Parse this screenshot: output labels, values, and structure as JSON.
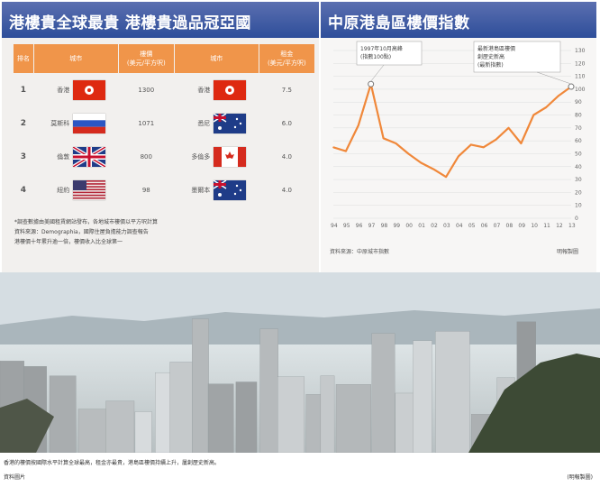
{
  "left_panel": {
    "title": "港樓貴全球最貴 港樓貴過品冠亞國",
    "table": {
      "headers": [
        "排名",
        "城市",
        "樓價\n(美元/平方呎)",
        "城市",
        "租金\n(美元/平方呎)"
      ],
      "rows": [
        {
          "rank": "1",
          "city1": "香港",
          "flag1": "hong-kong",
          "price": "1300",
          "city2": "香港",
          "flag2": "hong-kong",
          "rent": "7.5"
        },
        {
          "rank": "2",
          "city1": "莫斯科",
          "flag1": "russia",
          "price": "1071",
          "city2": "悉尼",
          "flag2": "australia",
          "rent": "6.0"
        },
        {
          "rank": "3",
          "city1": "倫敦",
          "flag1": "uk",
          "price": "800",
          "city2": "多倫多",
          "flag2": "canada",
          "rent": "4.0"
        },
        {
          "rank": "4",
          "city1": "紐約",
          "flag1": "usa",
          "price": "98",
          "city2": "墨爾本",
          "flag2": "australia",
          "rent": "4.0"
        }
      ]
    },
    "notes": [
      "*調查數據由美國租賃網站發布，各地城市樓價以平方呎計算",
      "資料來源：Demographia，國際住屋負擔能力調查報告",
      "港樓價十年累升逾一倍，樓價收入比全球第一"
    ]
  },
  "right_panel": {
    "title": "中原港島區樓價指數",
    "annotation_left": "1997年10月高峰\n(指數100點)",
    "annotation_right": "最新港島區樓價\n創歷史新高\n(最新指數)",
    "source": "資料來源：中原城市指數",
    "credit": "明報製圖"
  },
  "chart_data": {
    "type": "line",
    "title": "中原港島區樓價指數",
    "x": [
      1994,
      1995,
      1996,
      1997,
      1998,
      1999,
      2000,
      2001,
      2002,
      2003,
      2004,
      2005,
      2006,
      2007,
      2008,
      2009,
      2010,
      2011,
      2012,
      2013
    ],
    "values": [
      55,
      52,
      72,
      104,
      62,
      58,
      50,
      43,
      38,
      32,
      48,
      57,
      55,
      61,
      70,
      58,
      80,
      86,
      95,
      102
    ],
    "ylim": [
      0,
      130
    ],
    "yticks": [
      0,
      10,
      20,
      30,
      40,
      50,
      60,
      70,
      80,
      90,
      100,
      110,
      120,
      130
    ],
    "xticks": [
      "94",
      "95",
      "96",
      "97",
      "98",
      "99",
      "00",
      "01",
      "02",
      "03",
      "04",
      "05",
      "06",
      "07",
      "08",
      "09",
      "10",
      "11",
      "12",
      "13"
    ],
    "grid": true,
    "color": "#f0883a"
  },
  "caption": {
    "line1": "香港的樓價按國際水平計算全球最高，租金亦最貴，港島區樓價持續上升，屢創歷史新高。",
    "line2": "資料圖片",
    "credit": "(明報製圖)"
  },
  "colors": {
    "header_blue": "#2e4e9a",
    "table_orange": "#f0954a",
    "line_orange": "#f0883a"
  }
}
